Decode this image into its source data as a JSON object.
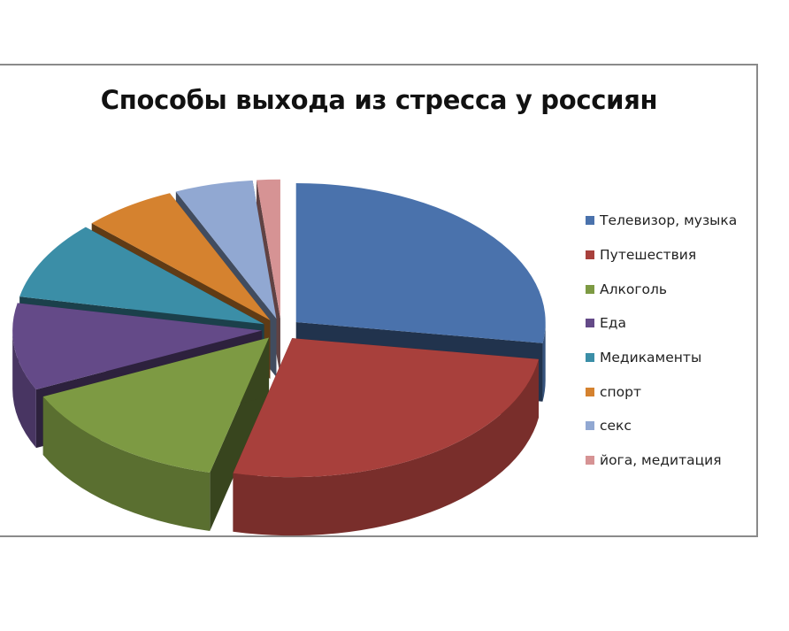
{
  "chart_data": {
    "type": "pie",
    "title": "Способы выхода из стресса у россиян",
    "categories": [
      "Телевизор, музыка",
      "Путешествия",
      "Алкоголь",
      "Еда",
      "Медикаменты",
      "спорт",
      "секс",
      "йога, медитация"
    ],
    "values": [
      27,
      26,
      14,
      10,
      9,
      6,
      5,
      1.5
    ],
    "colors": [
      "#4a72ac",
      "#a8403c",
      "#7d9a43",
      "#644a88",
      "#3b8ea7",
      "#d5822f",
      "#91a8d2",
      "#d69394"
    ],
    "three_d": true,
    "exploded": true,
    "legend_position": "right"
  }
}
